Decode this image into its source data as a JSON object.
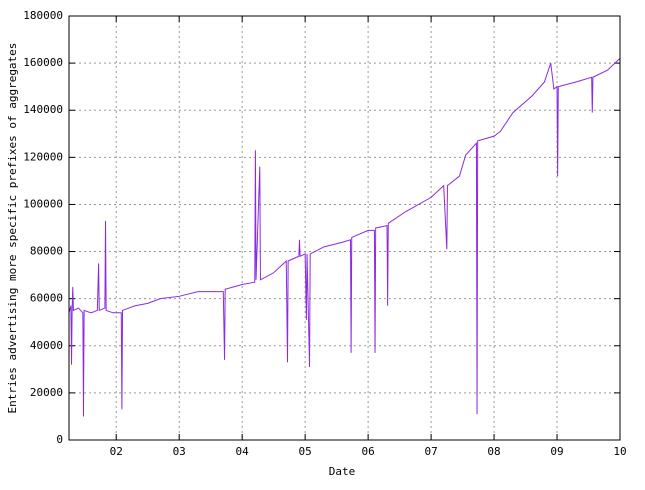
{
  "chart_data": {
    "type": "line",
    "xlabel": "Date",
    "ylabel": "Entries advertising more specific prefixes of aggregates",
    "color": "#8a2be2",
    "grid": true,
    "xlim": [
      1.25,
      10
    ],
    "xticks": [
      {
        "value": 2,
        "label": "02"
      },
      {
        "value": 3,
        "label": "03"
      },
      {
        "value": 4,
        "label": "04"
      },
      {
        "value": 5,
        "label": "05"
      },
      {
        "value": 6,
        "label": "06"
      },
      {
        "value": 7,
        "label": "07"
      },
      {
        "value": 8,
        "label": "08"
      },
      {
        "value": 9,
        "label": "09"
      },
      {
        "value": 10,
        "label": "10"
      }
    ],
    "ylim": [
      0,
      180000
    ],
    "yticks": [
      0,
      20000,
      40000,
      60000,
      80000,
      100000,
      120000,
      140000,
      160000,
      180000
    ],
    "x": [
      1.25,
      1.28,
      1.29,
      1.3,
      1.31,
      1.32,
      1.4,
      1.47,
      1.48,
      1.49,
      1.6,
      1.7,
      1.72,
      1.73,
      1.82,
      1.83,
      1.84,
      1.95,
      2.08,
      2.09,
      2.1,
      2.3,
      2.5,
      2.7,
      3.0,
      3.3,
      3.7,
      3.72,
      3.73,
      4.0,
      4.2,
      4.21,
      4.22,
      4.28,
      4.29,
      4.5,
      4.7,
      4.72,
      4.73,
      4.9,
      4.91,
      4.92,
      5.0,
      5.02,
      5.03,
      5.07,
      5.08,
      5.3,
      5.6,
      5.72,
      5.73,
      5.74,
      6.0,
      6.1,
      6.11,
      6.12,
      6.3,
      6.31,
      6.32,
      6.6,
      7.0,
      7.2,
      7.25,
      7.26,
      7.45,
      7.55,
      7.72,
      7.73,
      7.74,
      8.0,
      8.1,
      8.3,
      8.6,
      8.8,
      8.9,
      8.95,
      9.0,
      9.01,
      9.02,
      9.3,
      9.55,
      9.56,
      9.57,
      9.8,
      10.0
    ],
    "values": [
      54000,
      57000,
      32000,
      56000,
      65000,
      55000,
      56000,
      54000,
      10000,
      55000,
      54000,
      55000,
      75000,
      55000,
      56000,
      93000,
      55000,
      54000,
      54000,
      13000,
      55000,
      57000,
      58000,
      60000,
      61000,
      63000,
      63000,
      34000,
      64000,
      66000,
      67000,
      123000,
      68000,
      116000,
      68000,
      71000,
      76000,
      33000,
      76000,
      78000,
      85000,
      78000,
      79000,
      51000,
      79000,
      31000,
      79000,
      82000,
      84000,
      85000,
      37000,
      86000,
      89000,
      89000,
      37000,
      90000,
      91000,
      57000,
      92000,
      97000,
      103000,
      108000,
      81000,
      108000,
      112000,
      121000,
      126000,
      11000,
      127000,
      129000,
      131000,
      139000,
      146000,
      152000,
      160000,
      149000,
      150000,
      112000,
      150000,
      152000,
      154000,
      139000,
      154000,
      157000,
      162000
    ]
  }
}
